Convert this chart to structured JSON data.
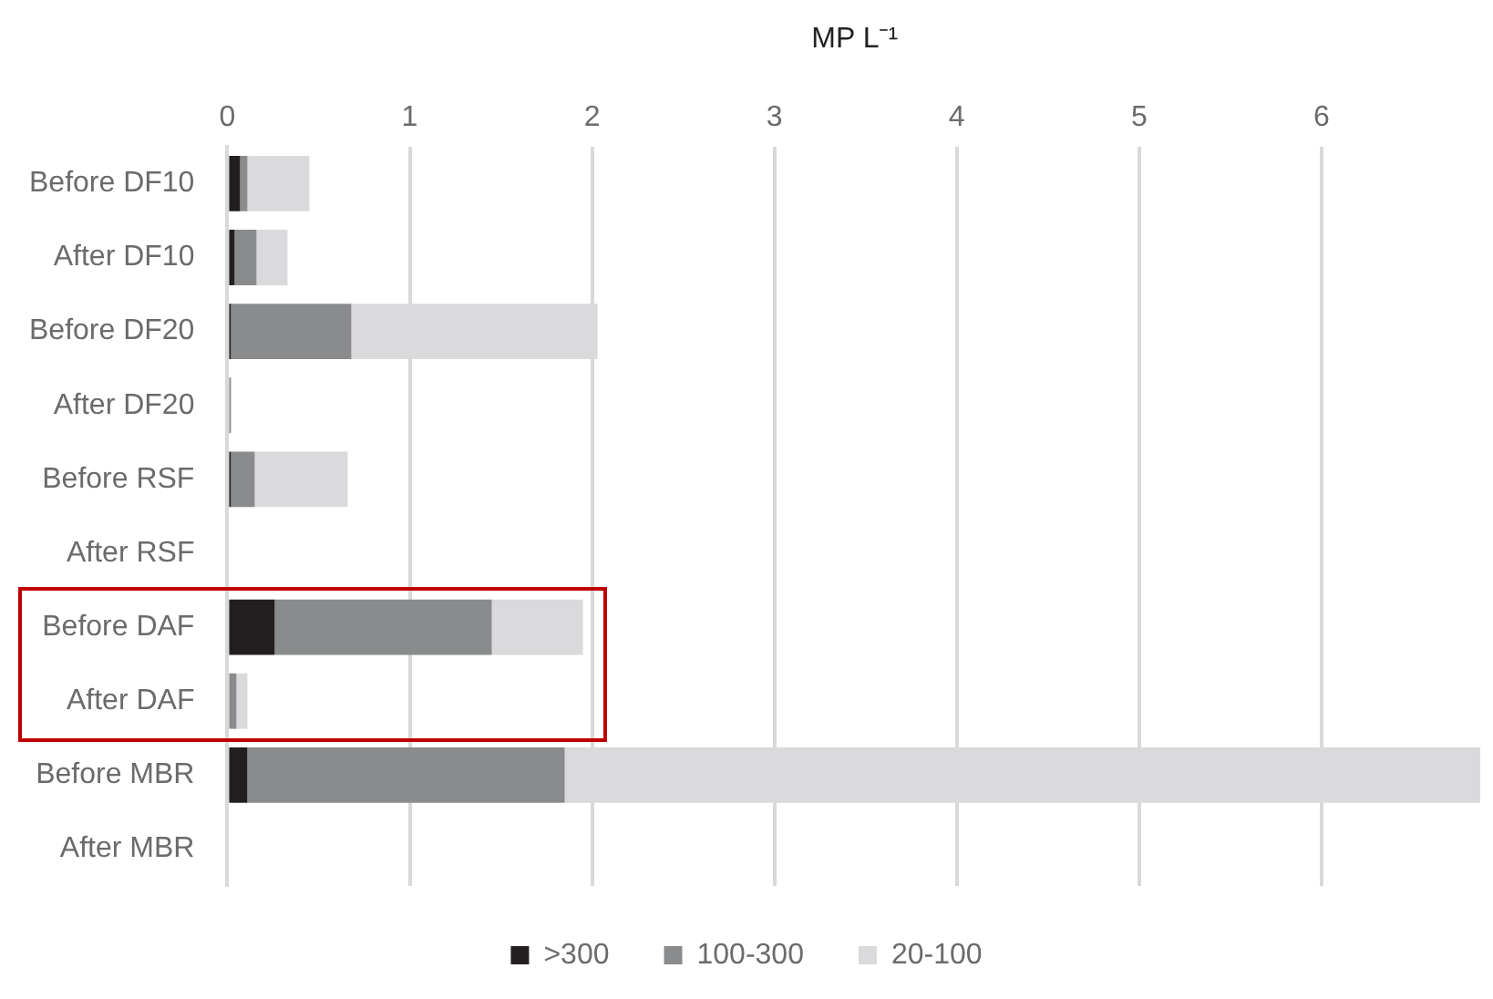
{
  "chart_data": {
    "type": "bar",
    "orientation": "horizontal",
    "stacked": true,
    "xlabel": "MP L⁻¹",
    "categories": [
      "Before DF10",
      "After DF10",
      "Before DF20",
      "After DF20",
      "Before RSF",
      "After RSF",
      "Before DAF",
      "After DAF",
      "Before MBR",
      "After MBR"
    ],
    "series": [
      {
        "name": ">300",
        "color": "#231f20",
        "values": [
          0.07,
          0.04,
          0.02,
          0,
          0.02,
          0,
          0.26,
          0,
          0.11,
          0
        ]
      },
      {
        "name": "100-300",
        "color": "#8a8b8d",
        "values": [
          0.04,
          0.12,
          0.66,
          0.02,
          0.13,
          0,
          1.19,
          0.05,
          1.74,
          0
        ]
      },
      {
        "name": "20-100",
        "color": "#dadadc",
        "values": [
          0.34,
          0.17,
          1.35,
          0,
          0.51,
          0,
          0.5,
          0.06,
          5.02,
          0
        ]
      }
    ],
    "xlim": [
      0,
      6.88
    ],
    "xticks": [
      0,
      1,
      2,
      3,
      4,
      5,
      6
    ],
    "grid": "x",
    "legend": "bottom"
  }
}
